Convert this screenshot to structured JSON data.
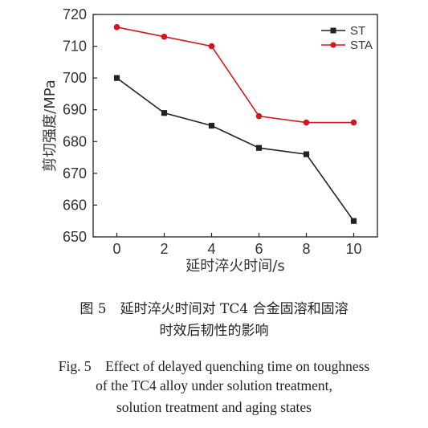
{
  "chart_data": {
    "type": "line",
    "x": [
      0,
      2,
      4,
      6,
      8,
      10
    ],
    "series": [
      {
        "name": "ST",
        "color": "#222222",
        "marker": "square",
        "values": [
          700,
          689,
          685,
          678,
          676,
          655
        ]
      },
      {
        "name": "STA",
        "color": "#d0191f",
        "marker": "circle",
        "values": [
          716,
          713,
          710,
          688,
          686,
          686
        ]
      }
    ],
    "xlabel": "延时淬火时间/s",
    "ylabel": "剪切强度/MPa",
    "xlim": [
      -1,
      11
    ],
    "ylim": [
      650,
      720
    ],
    "xticks": [
      0,
      2,
      4,
      6,
      8,
      10
    ],
    "yticks": [
      650,
      660,
      670,
      680,
      690,
      700,
      710,
      720
    ],
    "legend_position": "top-right",
    "grid": false
  },
  "caption": {
    "zh_line1": "图 5　延时淬火时间对 TC4 合金固溶和固溶",
    "zh_line2": "时效后韧性的影响",
    "en_line1": "Fig. 5　Effect of delayed quenching time on toughness",
    "en_line2": "of the TC4 alloy under solution treatment,",
    "en_line3": "solution treatment and aging states"
  }
}
